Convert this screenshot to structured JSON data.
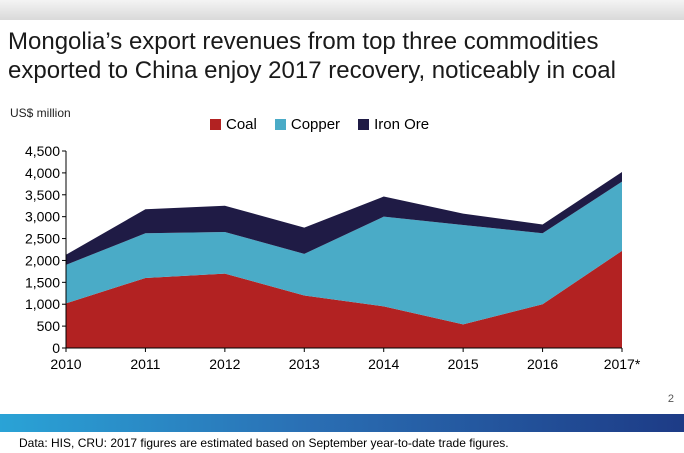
{
  "title": "Mongolia’s export revenues from top three commodities exported to China enjoy 2017 recovery, noticeably in coal",
  "page_number": "2",
  "footnote": "Data: HIS, CRU: 2017 figures are estimated based on September year-to-date trade figures.",
  "colors": {
    "coal": "#b22222",
    "copper": "#4aabc7",
    "iron_ore": "#1f1b45",
    "axis": "#000000",
    "grid": "#bfbfbf"
  },
  "chart_data": {
    "type": "area",
    "stacked": true,
    "ylabel": "US$ million",
    "ylim": [
      0,
      4500
    ],
    "yticks": [
      "0",
      "500",
      "1,000",
      "1,500",
      "2,000",
      "2,500",
      "3,000",
      "3,500",
      "4,000",
      "4,500"
    ],
    "categories": [
      "2010",
      "2011",
      "2012",
      "2013",
      "2014",
      "2015",
      "2016",
      "2017*"
    ],
    "legend_position": "top-center",
    "grid": false,
    "series": [
      {
        "name": "Coal",
        "values": [
          1020,
          1600,
          1700,
          1200,
          950,
          540,
          1000,
          2220
        ]
      },
      {
        "name": "Copper",
        "values": [
          880,
          1020,
          950,
          950,
          2050,
          2270,
          1620,
          1580
        ]
      },
      {
        "name": "Iron Ore",
        "values": [
          230,
          550,
          600,
          600,
          460,
          260,
          200,
          220
        ]
      }
    ]
  }
}
